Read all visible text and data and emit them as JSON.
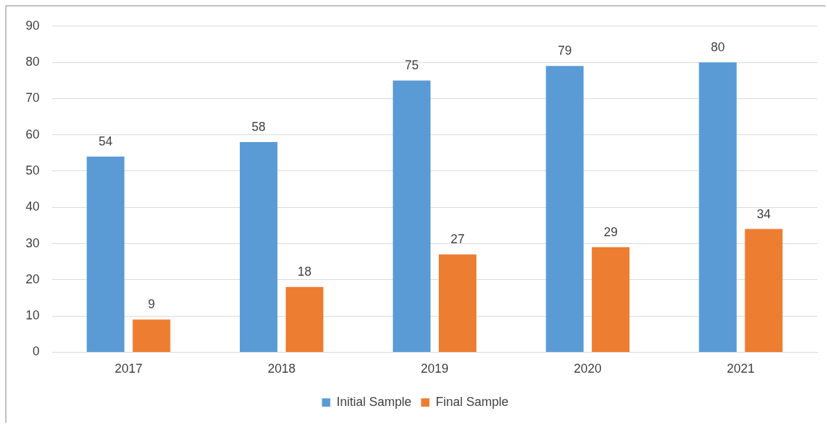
{
  "chart_data": {
    "type": "bar",
    "categories": [
      "2017",
      "2018",
      "2019",
      "2020",
      "2021"
    ],
    "series": [
      {
        "name": "Initial Sample",
        "color": "#5b9bd5",
        "values": [
          54,
          58,
          75,
          79,
          80
        ]
      },
      {
        "name": "Final Sample",
        "color": "#ed7d31",
        "values": [
          9,
          18,
          27,
          29,
          34
        ]
      }
    ],
    "ylim": [
      0,
      90
    ],
    "yticks": [
      0,
      10,
      20,
      30,
      40,
      50,
      60,
      70,
      80,
      90
    ],
    "grid": "y",
    "legend": "bottom",
    "data_labels": true
  }
}
